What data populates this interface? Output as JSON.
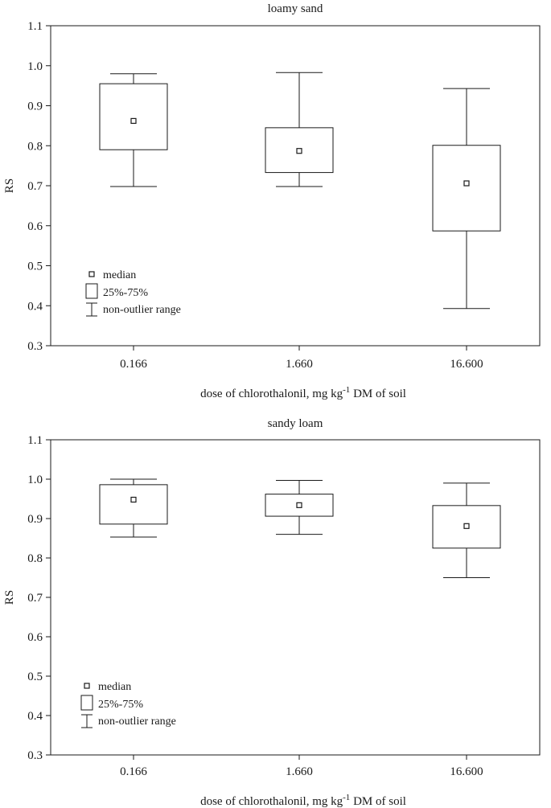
{
  "chart_data": [
    {
      "type": "box",
      "title": "loamy sand",
      "xlabel_pre": "dose of chlorothalonil, mg kg",
      "xlabel_sup": "-1",
      "xlabel_post": " DM of soil",
      "ylabel": "RS",
      "categories": [
        "0.166",
        "1.660",
        "16.600"
      ],
      "yticks": [
        "0.3",
        "0.4",
        "0.5",
        "0.6",
        "0.7",
        "0.8",
        "0.9",
        "1.0",
        "1.1"
      ],
      "ylim": [
        0.3,
        1.1
      ],
      "boxes": [
        {
          "whisker_low": 0.698,
          "q1": 0.79,
          "median": 0.862,
          "q3": 0.955,
          "whisker_high": 0.98
        },
        {
          "whisker_low": 0.698,
          "q1": 0.733,
          "median": 0.787,
          "q3": 0.845,
          "whisker_high": 0.983
        },
        {
          "whisker_low": 0.393,
          "q1": 0.587,
          "median": 0.706,
          "q3": 0.801,
          "whisker_high": 0.943
        }
      ],
      "legend": {
        "placement": "bottom-left",
        "median": "median",
        "box": "25%-75%",
        "range": "non-outlier range"
      },
      "grid": false
    },
    {
      "type": "box",
      "title": "sandy loam",
      "xlabel_pre": "dose of chlorothalonil, mg kg",
      "xlabel_sup": "-1",
      "xlabel_post": " DM of soil",
      "ylabel": "RS",
      "categories": [
        "0.166",
        "1.660",
        "16.600"
      ],
      "yticks": [
        "0.3",
        "0.4",
        "0.5",
        "0.6",
        "0.7",
        "0.8",
        "0.9",
        "1.0",
        "1.1"
      ],
      "ylim": [
        0.3,
        1.1
      ],
      "boxes": [
        {
          "whisker_low": 0.853,
          "q1": 0.886,
          "median": 0.948,
          "q3": 0.986,
          "whisker_high": 1.0
        },
        {
          "whisker_low": 0.86,
          "q1": 0.906,
          "median": 0.934,
          "q3": 0.962,
          "whisker_high": 0.997
        },
        {
          "whisker_low": 0.75,
          "q1": 0.825,
          "median": 0.881,
          "q3": 0.933,
          "whisker_high": 0.99
        }
      ],
      "legend": {
        "placement": "bottom-left",
        "median": "median",
        "box": "25%-75%",
        "range": "non-outlier range"
      },
      "grid": false
    }
  ]
}
